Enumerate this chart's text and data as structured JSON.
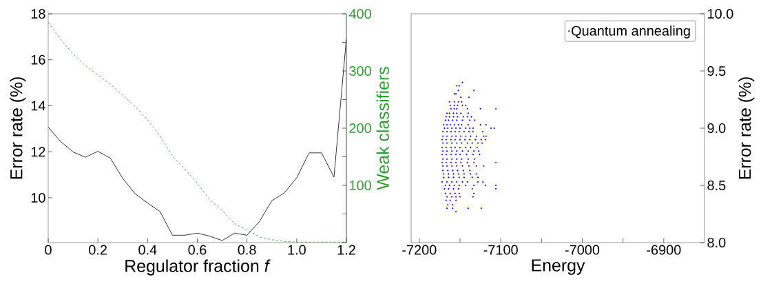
{
  "chart_data": [
    {
      "type": "line",
      "xlabel": "Regulator fraction *f*",
      "ylabel": "Error rate (%)",
      "y2label": "Weak classifiers",
      "x": [
        0,
        0.05,
        0.1,
        0.15,
        0.2,
        0.25,
        0.3,
        0.35,
        0.4,
        0.45,
        0.5,
        0.55,
        0.6,
        0.65,
        0.7,
        0.75,
        0.8,
        0.85,
        0.9,
        0.95,
        1.0,
        1.05,
        1.1,
        1.15,
        1.2
      ],
      "series": [
        {
          "color": "#000000",
          "line_style": "solid",
          "values": [
            13.06,
            12.45,
            11.99,
            11.76,
            12.02,
            11.72,
            10.84,
            10.17,
            9.77,
            9.4,
            8.37,
            8.37,
            8.46,
            8.33,
            8.14,
            8.46,
            8.37,
            8.97,
            9.87,
            10.21,
            10.87,
            11.95,
            11.95,
            10.9,
            16.93
          ]
        },
        {
          "color": "#2ca02c",
          "line_style": "dashed",
          "axis": "y2",
          "values": [
            385,
            355,
            330,
            309,
            293,
            277,
            258,
            238,
            215,
            187,
            151,
            128,
            104,
            75,
            56,
            33,
            22,
            10,
            5,
            2,
            1,
            1,
            1,
            1,
            1
          ]
        }
      ],
      "xlim": [
        0,
        1.2
      ],
      "xticks": [
        0,
        0.2,
        0.4,
        0.6,
        0.8,
        {
          "value": 1.0,
          "label": "1.0"
        },
        1.2
      ],
      "ylim": [
        8.05,
        18
      ],
      "yticks": [
        10,
        12,
        14,
        16,
        18
      ],
      "y2lim": [
        0,
        400
      ],
      "y2ticks": [
        {
          "value": 0,
          "label": null
        },
        {
          "value": 50,
          "label": null
        },
        100,
        {
          "value": 150,
          "label": null
        },
        200,
        {
          "value": 250,
          "label": null
        },
        300,
        {
          "value": 350,
          "label": null
        },
        400
      ],
      "legend": false,
      "marker": "none"
    },
    {
      "type": "scatter",
      "xlabel": "Energy",
      "y2label": "Error rate (%)",
      "legend": "top right",
      "marker": "circle",
      "xlim": [
        -7210,
        -6850
      ],
      "xticks": [
        -7200,
        {
          "value": -7150,
          "label": null
        },
        -7100,
        {
          "value": -7050,
          "label": null
        },
        -7000,
        {
          "value": -6950,
          "label": null
        },
        -6900
      ],
      "y2lim": [
        8,
        10
      ],
      "y2ticks": [
        {
          "value": 8,
          "label": "8.0"
        },
        {
          "value": 8.5,
          "label": "8.5"
        },
        {
          "value": 9,
          "label": "9.0"
        },
        {
          "value": 9.5,
          "label": "9.5"
        },
        {
          "value": 10,
          "label": "10.0"
        }
      ],
      "series": [
        {
          "name": "Quantum annealing",
          "color": "#0000ff",
          "axis": "y2",
          "x": [
            -7147,
            -7154,
            -7151,
            -7152,
            -7133,
            -7157,
            -7155,
            -7149,
            -7139,
            -7163,
            -7157,
            -7152,
            -7148,
            -7162,
            -7157,
            -7153,
            -7147,
            -7143,
            -7161,
            -7157,
            -7154,
            -7141,
            -7125,
            -7106,
            -7166,
            -7163,
            -7158,
            -7154,
            -7149,
            -7140,
            -7167,
            -7163,
            -7158,
            -7153,
            -7146,
            -7141,
            -7136,
            -7168,
            -7164,
            -7159,
            -7154,
            -7147,
            -7138,
            -7132,
            -7170,
            -7166,
            -7162,
            -7157,
            -7152,
            -7148,
            -7140,
            -7125,
            -7118,
            -7169,
            -7165,
            -7160,
            -7155,
            -7150,
            -7143,
            -7138,
            -7134,
            -7112,
            -7108,
            -7171,
            -7166,
            -7161,
            -7156,
            -7151,
            -7145,
            -7139,
            -7134,
            -7122,
            -7171,
            -7166,
            -7160,
            -7155,
            -7149,
            -7143,
            -7137,
            -7130,
            -7121,
            -7118,
            -7172,
            -7167,
            -7161,
            -7156,
            -7150,
            -7144,
            -7138,
            -7131,
            -7124,
            -7119,
            -7171,
            -7166,
            -7160,
            -7154,
            -7148,
            -7141,
            -7135,
            -7128,
            -7123,
            -7172,
            -7167,
            -7161,
            -7156,
            -7150,
            -7143,
            -7137,
            -7129,
            -7171,
            -7166,
            -7160,
            -7154,
            -7147,
            -7140,
            -7133,
            -7127,
            -7172,
            -7167,
            -7161,
            -7155,
            -7150,
            -7142,
            -7134,
            -7126,
            -7171,
            -7166,
            -7160,
            -7154,
            -7148,
            -7140,
            -7132,
            -7172,
            -7167,
            -7161,
            -7155,
            -7149,
            -7141,
            -7133,
            -7106,
            -7171,
            -7166,
            -7160,
            -7154,
            -7147,
            -7139,
            -7130,
            -7121,
            -7171,
            -7165,
            -7159,
            -7153,
            -7146,
            -7138,
            -7170,
            -7164,
            -7158,
            -7152,
            -7145,
            -7137,
            -7130,
            -7170,
            -7164,
            -7158,
            -7151,
            -7145,
            -7135,
            -7128,
            -7172,
            -7166,
            -7160,
            -7154,
            -7147,
            -7141,
            -7128,
            -7122,
            -7168,
            -7163,
            -7157,
            -7151,
            -7143,
            -7133,
            -7119,
            -7106,
            -7169,
            -7164,
            -7158,
            -7152,
            -7135,
            -7106,
            -7168,
            -7162,
            -7156,
            -7151,
            -7133,
            -7166,
            -7160,
            -7155,
            -7150,
            -7134,
            -7167,
            -7162,
            -7155,
            -7165,
            -7159,
            -7166,
            -7159,
            -7140,
            -7124,
            -7155
          ],
          "values": [
            9.4,
            9.37,
            9.37,
            9.33,
            9.33,
            9.3,
            9.3,
            9.27,
            9.27,
            9.23,
            9.23,
            9.23,
            9.23,
            9.2,
            9.2,
            9.2,
            9.2,
            9.2,
            9.17,
            9.17,
            9.17,
            9.17,
            9.17,
            9.17,
            9.13,
            9.13,
            9.13,
            9.13,
            9.13,
            9.13,
            9.1,
            9.1,
            9.1,
            9.1,
            9.1,
            9.1,
            9.1,
            9.07,
            9.07,
            9.07,
            9.07,
            9.07,
            9.07,
            9.07,
            9.03,
            9.03,
            9.03,
            9.03,
            9.03,
            9.03,
            9.03,
            9.03,
            9.03,
            9.0,
            9.0,
            9.0,
            9.0,
            9.0,
            9.0,
            9.0,
            9.0,
            9.0,
            9.0,
            8.97,
            8.97,
            8.97,
            8.97,
            8.97,
            8.97,
            8.97,
            8.97,
            8.97,
            8.93,
            8.93,
            8.93,
            8.93,
            8.93,
            8.93,
            8.93,
            8.93,
            8.93,
            8.93,
            8.9,
            8.9,
            8.9,
            8.9,
            8.9,
            8.9,
            8.9,
            8.9,
            8.9,
            8.9,
            8.87,
            8.87,
            8.87,
            8.87,
            8.87,
            8.87,
            8.87,
            8.87,
            8.87,
            8.83,
            8.83,
            8.83,
            8.83,
            8.83,
            8.83,
            8.83,
            8.83,
            8.8,
            8.8,
            8.8,
            8.8,
            8.8,
            8.8,
            8.8,
            8.8,
            8.77,
            8.77,
            8.77,
            8.77,
            8.77,
            8.77,
            8.77,
            8.77,
            8.73,
            8.73,
            8.73,
            8.73,
            8.73,
            8.73,
            8.73,
            8.7,
            8.7,
            8.7,
            8.7,
            8.7,
            8.7,
            8.7,
            8.7,
            8.67,
            8.67,
            8.67,
            8.67,
            8.67,
            8.67,
            8.67,
            8.67,
            8.63,
            8.63,
            8.63,
            8.63,
            8.63,
            8.63,
            8.6,
            8.6,
            8.6,
            8.6,
            8.6,
            8.6,
            8.6,
            8.57,
            8.57,
            8.57,
            8.57,
            8.57,
            8.57,
            8.57,
            8.53,
            8.53,
            8.53,
            8.53,
            8.53,
            8.53,
            8.53,
            8.53,
            8.5,
            8.5,
            8.5,
            8.5,
            8.5,
            8.5,
            8.5,
            8.5,
            8.47,
            8.47,
            8.47,
            8.47,
            8.47,
            8.47,
            8.43,
            8.43,
            8.43,
            8.43,
            8.43,
            8.4,
            8.4,
            8.4,
            8.4,
            8.4,
            8.37,
            8.37,
            8.37,
            8.33,
            8.33,
            8.3,
            8.3,
            8.3,
            8.3,
            8.27
          ]
        }
      ]
    }
  ]
}
